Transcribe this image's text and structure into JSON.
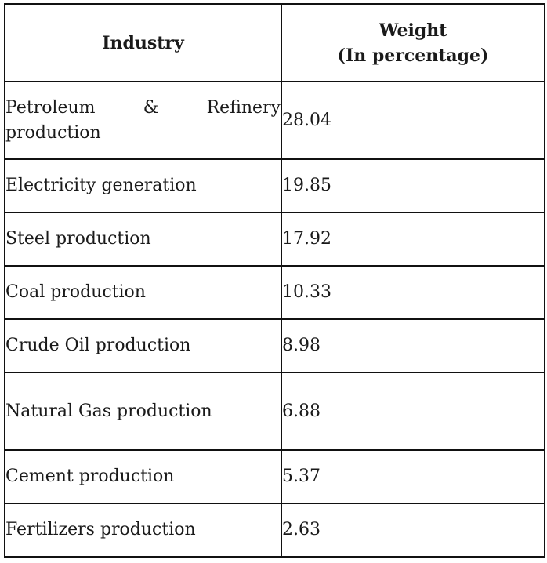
{
  "table": {
    "headers": {
      "industry": "Industry",
      "weight_line1": "Weight",
      "weight_line2": "(In percentage)"
    },
    "rows": [
      {
        "industry": "Petroleum & Refinery production",
        "weight": "28.04"
      },
      {
        "industry": "Electricity generation",
        "weight": "19.85"
      },
      {
        "industry": "Steel production",
        "weight": "17.92"
      },
      {
        "industry": "Coal production",
        "weight": "10.33"
      },
      {
        "industry": "Crude Oil production",
        "weight": "8.98"
      },
      {
        "industry": "Natural Gas production",
        "weight": "6.88"
      },
      {
        "industry": "Cement production",
        "weight": "5.37"
      },
      {
        "industry": "Fertilizers production",
        "weight": "2.63"
      }
    ]
  }
}
